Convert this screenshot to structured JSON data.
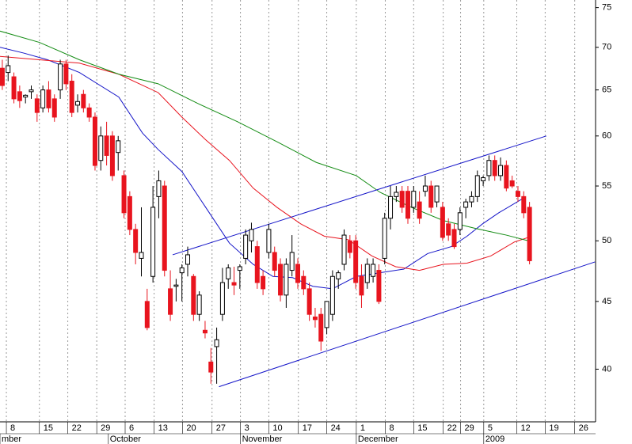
{
  "chart_data": {
    "type": "candlestick",
    "log_scale": true,
    "grid": true,
    "up_color": "#ffffff",
    "down_color": "#e8141e",
    "outline_color": "#000000",
    "xlim": [
      -0.4,
      102.4
    ],
    "ylim": [
      36.5,
      76
    ],
    "yticks": [
      40,
      45,
      50,
      55,
      60,
      65,
      70,
      75
    ],
    "xticks": [
      {
        "value": 0.7,
        "label": "8"
      },
      {
        "value": 6.4,
        "label": "15"
      },
      {
        "value": 11.3,
        "label": "22"
      },
      {
        "value": 16.3,
        "label": "29"
      },
      {
        "value": 21.2,
        "label": "6"
      },
      {
        "value": 26.2,
        "label": "13"
      },
      {
        "value": 31.1,
        "label": "20"
      },
      {
        "value": 36.2,
        "label": "27"
      },
      {
        "value": 41.1,
        "label": "3"
      },
      {
        "value": 46,
        "label": "10"
      },
      {
        "value": 51.1,
        "label": "17"
      },
      {
        "value": 56,
        "label": "24"
      },
      {
        "value": 61.1,
        "label": "1"
      },
      {
        "value": 66.1,
        "label": "8"
      },
      {
        "value": 71,
        "label": "15"
      },
      {
        "value": 76.1,
        "label": "22"
      },
      {
        "value": 79.1,
        "label": "29"
      },
      {
        "value": 83.1,
        "label": "5"
      },
      {
        "value": 88.8,
        "label": "12"
      },
      {
        "value": 93.7,
        "label": "19"
      },
      {
        "value": 98.8,
        "label": "26"
      }
    ],
    "month_labels": [
      {
        "value": -0.4,
        "label": "mber"
      },
      {
        "value": 18.3,
        "label": "October"
      },
      {
        "value": 41.1,
        "label": "November"
      },
      {
        "value": 61.1,
        "label": "December"
      },
      {
        "value": 83.1,
        "label": "2009"
      }
    ],
    "x": [
      0,
      1,
      2,
      3,
      4,
      5,
      6,
      7,
      8,
      9,
      10,
      11,
      12,
      13,
      14,
      15,
      16,
      17,
      18,
      19,
      20,
      21,
      22,
      23,
      24,
      25,
      26,
      27,
      28,
      29,
      30,
      31,
      32,
      33,
      34,
      35,
      36,
      37,
      38,
      39,
      40,
      41,
      42,
      43,
      44,
      45,
      46,
      47,
      48,
      49,
      50,
      51,
      52,
      53,
      54,
      55,
      56,
      57,
      58,
      59,
      60,
      61,
      62,
      63,
      64,
      65,
      66,
      67,
      68,
      69,
      70,
      71,
      72,
      73,
      74,
      75,
      76,
      77,
      78,
      79,
      80,
      81,
      82,
      83,
      84,
      85,
      86,
      87,
      88,
      89,
      90,
      91
    ],
    "open": [
      67.5,
      67,
      66.5,
      64.8,
      64.2,
      64.8,
      64,
      63,
      65,
      64,
      65,
      68,
      66,
      63.3,
      64.5,
      63,
      62,
      57.5,
      60,
      60,
      58.3,
      56,
      54,
      51,
      48.5,
      45,
      47,
      54,
      55,
      46,
      46.2,
      47.3,
      48,
      47,
      44,
      42.8,
      40.5,
      41.6,
      44,
      46.8,
      46.5,
      47.5,
      48.5,
      50,
      49.5,
      47,
      49,
      49,
      48,
      45.5,
      47.5,
      48,
      47,
      46,
      43.8,
      44,
      43,
      44,
      46.8,
      48,
      50,
      50,
      47,
      46.5,
      47,
      47.5,
      48.5,
      52,
      54,
      54.5,
      54.5,
      53,
      53.5,
      54.5,
      55,
      53.5,
      53,
      51.5,
      51,
      51,
      53,
      53.5,
      54,
      55.5,
      56,
      57.5,
      56,
      57,
      55.5,
      54.5,
      54,
      53
    ],
    "high": [
      68.5,
      69,
      67,
      65.5,
      64.5,
      65.5,
      64.5,
      65.5,
      66,
      64.5,
      68.5,
      68.5,
      66.8,
      64.5,
      65,
      63.5,
      62.5,
      61,
      61.5,
      60.5,
      60,
      56.5,
      54.5,
      51.5,
      53,
      46,
      55,
      56.5,
      55.5,
      47.5,
      46.8,
      48,
      49.5,
      47.2,
      45.8,
      43.5,
      41.5,
      43,
      47.7,
      48,
      47.8,
      48,
      51,
      51.6,
      50,
      47.5,
      51.5,
      49.5,
      48.5,
      48.5,
      50.5,
      48.5,
      47.5,
      46.5,
      44.5,
      44.5,
      45,
      47.5,
      47.5,
      51,
      50.5,
      50.5,
      48,
      48.5,
      48.5,
      48,
      52.5,
      55,
      55,
      55,
      55,
      55,
      54.5,
      56,
      55.5,
      55,
      53.5,
      52,
      51.5,
      53,
      53.8,
      54.5,
      56.5,
      56,
      58,
      58,
      57.8,
      57.5,
      56,
      55,
      54.5,
      53.5
    ],
    "low": [
      65,
      66,
      63.5,
      63,
      63.5,
      64,
      61.5,
      62.5,
      62.5,
      61.5,
      64,
      65,
      62,
      62.5,
      62.5,
      61.5,
      56.5,
      56.5,
      57,
      55.5,
      56.5,
      52,
      50.5,
      48,
      47,
      42.8,
      46.5,
      52,
      47,
      43.5,
      45,
      45,
      47,
      43.5,
      43.5,
      42.2,
      39,
      39,
      43.5,
      46,
      45.5,
      46,
      48,
      49,
      46,
      45.5,
      48.5,
      47,
      45,
      44.5,
      47,
      46,
      45.5,
      43.5,
      43,
      41.3,
      42.5,
      43.5,
      46,
      47.5,
      48.5,
      46,
      44.5,
      46,
      46.5,
      44.8,
      48,
      51,
      53.5,
      52.5,
      51.5,
      52.5,
      51.5,
      54,
      52.5,
      53,
      50,
      50,
      49.3,
      50.5,
      52,
      53,
      53.5,
      55,
      55.5,
      55.5,
      55.5,
      54.5,
      54.8,
      53.5,
      52,
      48
    ],
    "close": [
      65.5,
      67.8,
      64,
      63.8,
      64.4,
      65,
      62.5,
      65,
      63,
      62,
      68,
      65.7,
      62.5,
      63.7,
      63,
      62,
      57,
      60,
      58,
      56,
      59.5,
      52.5,
      51,
      49,
      49,
      43,
      53,
      55.5,
      47.5,
      44,
      46.3,
      47.7,
      48.8,
      44,
      45.5,
      42.6,
      39.8,
      42.1,
      46.5,
      47.7,
      46.3,
      47.8,
      50.5,
      51,
      46.5,
      46,
      51,
      47.5,
      45.5,
      48,
      49,
      46.5,
      46,
      44,
      43.6,
      42,
      45,
      47,
      47.3,
      50.5,
      49,
      46.5,
      45.5,
      48,
      48,
      45,
      52,
      54,
      54.4,
      53,
      52,
      54.5,
      52,
      55,
      53,
      55,
      50.3,
      50.5,
      49.5,
      52.5,
      53.5,
      54,
      56,
      55.8,
      57.5,
      56,
      57,
      54.8,
      55,
      54,
      52.5,
      48.3
    ],
    "lines": [
      {
        "color": "#1414c8",
        "x": [
          -0.4,
          3.7,
          7.8,
          13.3,
          20.1,
          24.2,
          26.9,
          31,
          35.1,
          39.2,
          43.3,
          46.7,
          50.1,
          53.6,
          57,
          61.1,
          65.2,
          69.3,
          73.4,
          77.5,
          80.2,
          82.9,
          85.7,
          89.8
        ],
        "values": [
          70,
          69.3,
          68.5,
          67,
          64.2,
          60.3,
          58.6,
          56.4,
          53,
          49.8,
          48,
          47,
          46.9,
          46.2,
          46,
          47,
          47.3,
          47.6,
          48.9,
          49.5,
          50.4,
          51.5,
          52.5,
          53.8
        ]
      },
      {
        "color": "#e8141e",
        "x": [
          -0.4,
          6.4,
          13.3,
          20.1,
          26.9,
          31,
          35.1,
          39.2,
          43.3,
          47.4,
          51.5,
          55.6,
          59.7,
          63.8,
          67.9,
          72,
          76.1,
          80.2,
          84.3,
          88.4,
          90.8
        ],
        "values": [
          68.9,
          68.5,
          68.1,
          66.8,
          64.7,
          62,
          59.6,
          57.5,
          54.8,
          53,
          51.5,
          50.4,
          50.1,
          48.7,
          47.8,
          47.5,
          48,
          48.1,
          48.7,
          49.9,
          50.3
        ]
      },
      {
        "color": "#148c14",
        "x": [
          -0.4,
          6.4,
          13.3,
          20.1,
          26.9,
          33.7,
          40.6,
          47.4,
          54.2,
          61.1,
          65.2,
          70.6,
          76.1,
          81.6,
          87,
          90.8
        ],
        "values": [
          72,
          70.6,
          68.5,
          66.8,
          65.7,
          63.5,
          61.5,
          59.4,
          57.3,
          56,
          54.4,
          53,
          51.8,
          51.1,
          50.5,
          50
        ]
      }
    ],
    "trendlines": [
      {
        "color": "#1414c8",
        "x": [
          29.4,
          93.9
        ],
        "values": [
          48.8,
          60
        ]
      },
      {
        "color": "#1414c8",
        "x": [
          37.4,
          102.3
        ],
        "values": [
          38.8,
          48.2
        ]
      }
    ]
  }
}
